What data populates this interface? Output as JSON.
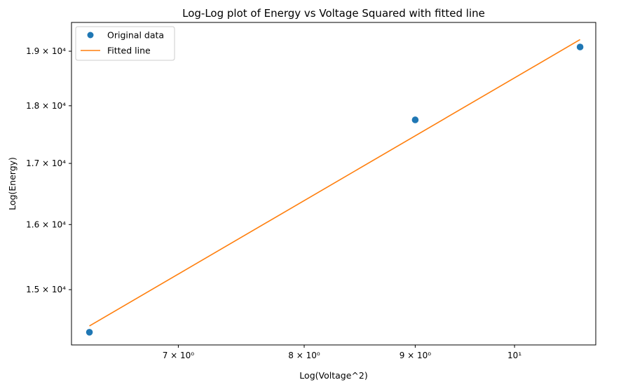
{
  "chart_data": {
    "type": "scatter",
    "title": "Log-Log plot of Energy vs Voltage Squared with fitted line",
    "xlabel": "Log(Voltage^2)",
    "ylabel": "Log(Energy)",
    "x_scale": "log",
    "y_scale": "log",
    "xlim": [
      6.25,
      10.9
    ],
    "ylim": [
      14200,
      19550
    ],
    "x_ticks": [
      {
        "value": 7,
        "label": "7 × 10⁰"
      },
      {
        "value": 8,
        "label": "8 × 10⁰"
      },
      {
        "value": 9,
        "label": "9 × 10⁰"
      },
      {
        "value": 10,
        "label": "10¹"
      }
    ],
    "y_ticks": [
      {
        "value": 15000,
        "label": "1.5 × 10⁴"
      },
      {
        "value": 16000,
        "label": "1.6 × 10⁴"
      },
      {
        "value": 17000,
        "label": "1.7 × 10⁴"
      },
      {
        "value": 18000,
        "label": "1.8 × 10⁴"
      },
      {
        "value": 19000,
        "label": "1.9 × 10⁴"
      }
    ],
    "series": [
      {
        "name": "Original data",
        "kind": "scatter",
        "color": "#1f77b4",
        "x": [
          6.37,
          9.0,
          10.72
        ],
        "y": [
          14380,
          17750,
          19080
        ]
      },
      {
        "name": "Fitted line",
        "kind": "line",
        "color": "#ff7f0e",
        "x": [
          6.37,
          10.72
        ],
        "y": [
          14470,
          19220
        ]
      }
    ],
    "legend": {
      "position": "top-left"
    },
    "grid": false
  }
}
